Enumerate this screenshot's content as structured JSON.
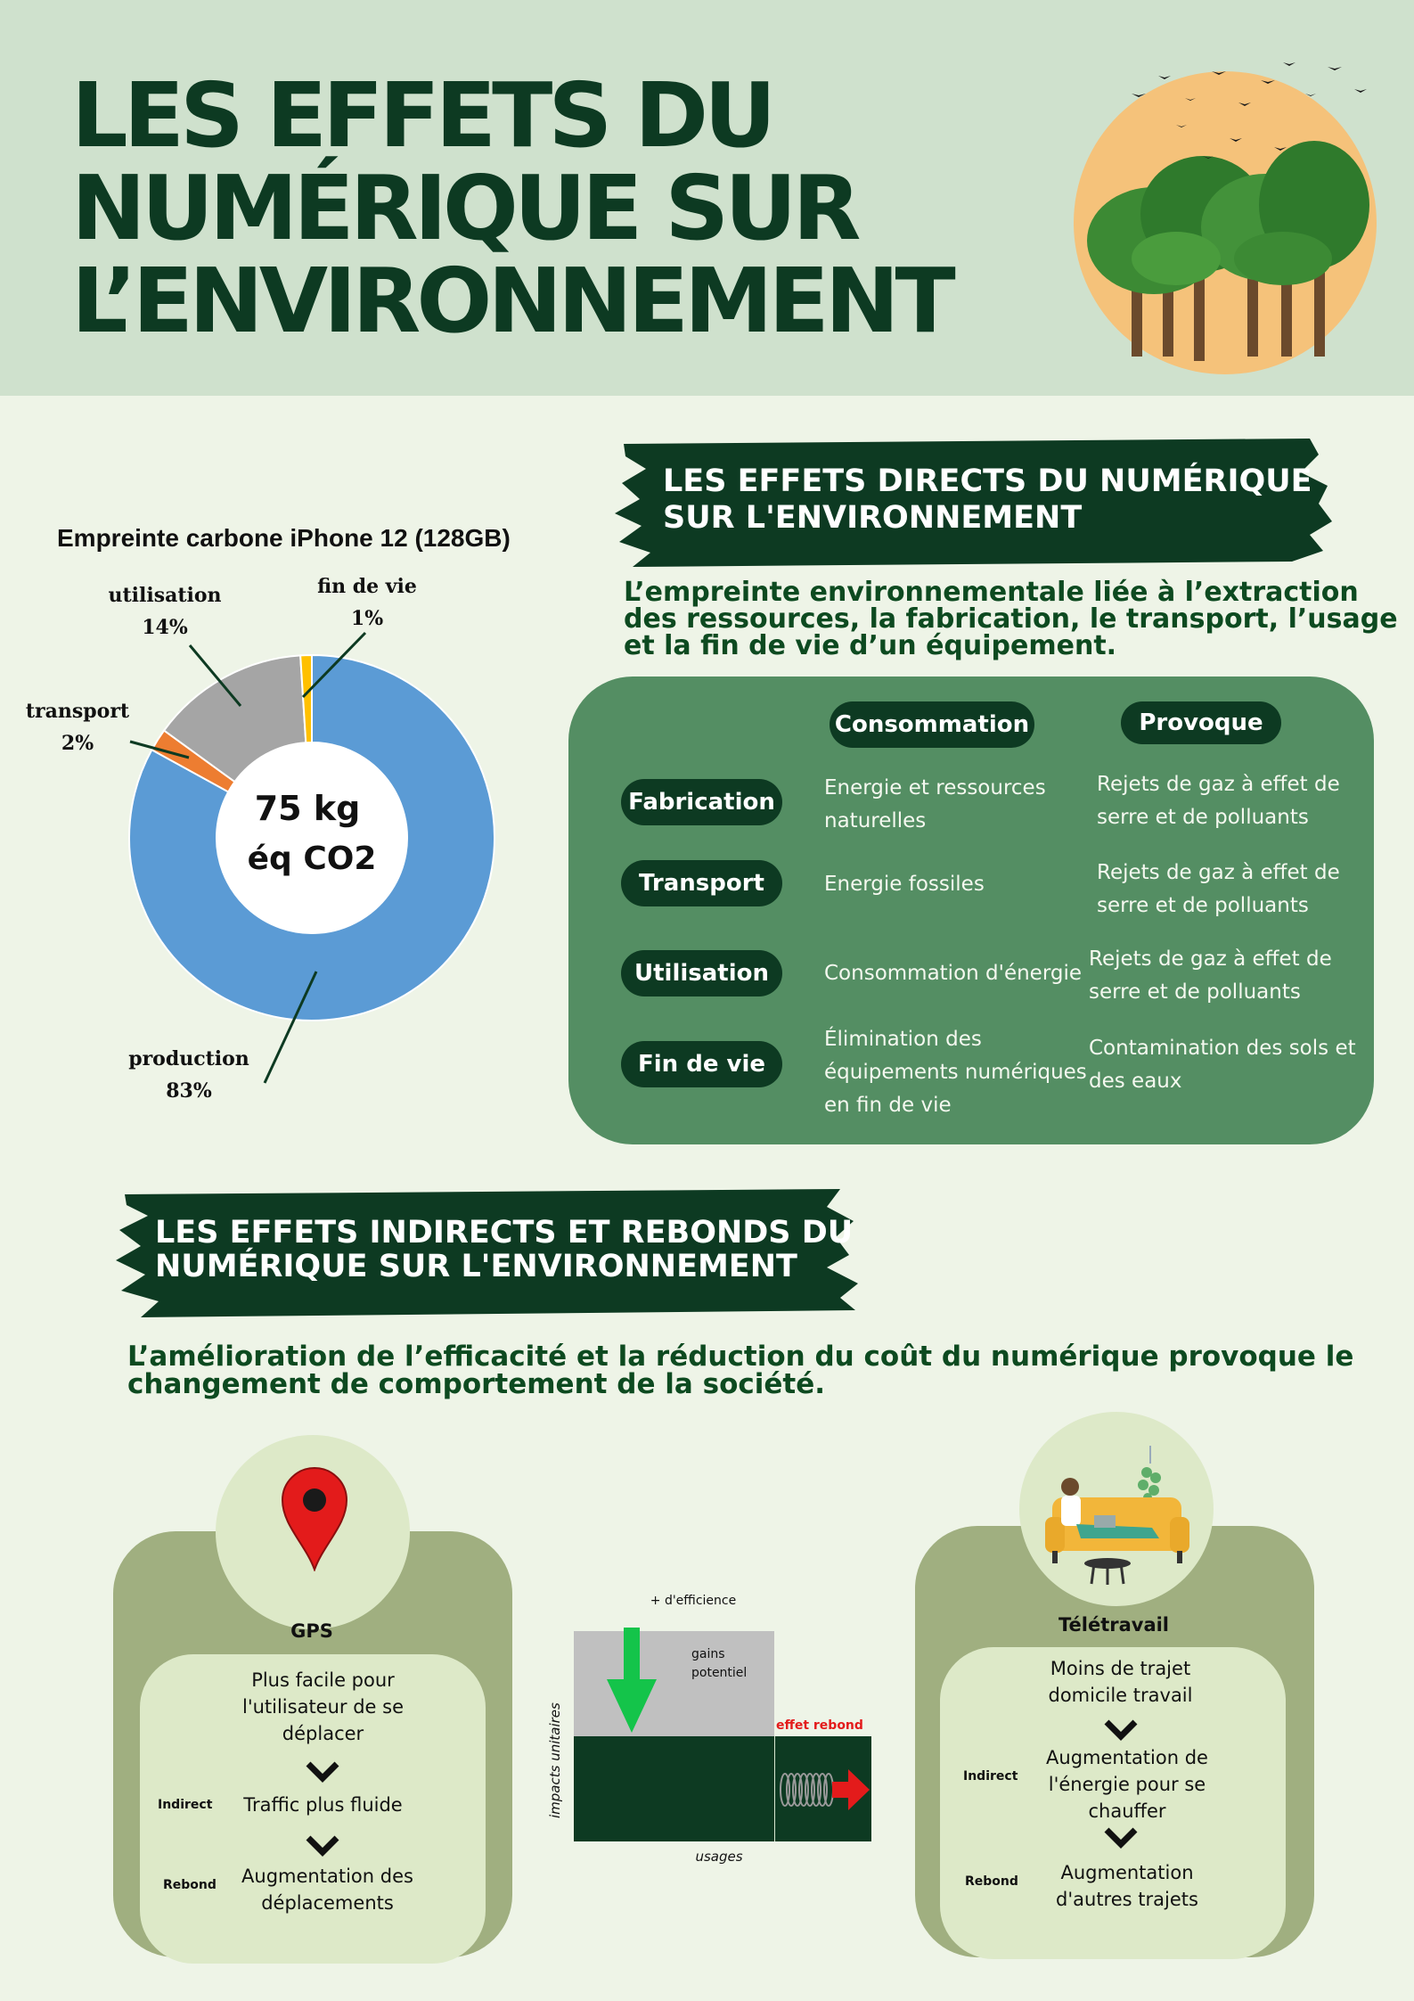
{
  "header": {
    "title_lines": [
      "LES EFFETS DU",
      "NUMÉRIQUE SUR",
      "L’ENVIRONNEMENT"
    ]
  },
  "direct": {
    "banner_lines": [
      "LES EFFETS DIRECTS DU NUMÉRIQUE",
      "SUR L'ENVIRONNEMENT"
    ],
    "intro_lines": [
      "L’empreinte environnementale liée à l’extraction",
      "des ressources, la fabrication, le transport, l’usage",
      "et la fin de vie d’un équipement."
    ],
    "table": {
      "col_headers": [
        "Consommation",
        "Provoque"
      ],
      "rows": [
        {
          "label": "Fabrication",
          "consumption": [
            "Energie et ressources",
            "naturelles"
          ],
          "effect": [
            "Rejets de gaz à effet de",
            "serre et de polluants"
          ]
        },
        {
          "label": "Transport",
          "consumption": [
            "Energie fossiles"
          ],
          "effect": [
            "Rejets de gaz à effet de",
            "serre et de polluants"
          ]
        },
        {
          "label": "Utilisation",
          "consumption": [
            "Consommation d'énergie"
          ],
          "effect": [
            "Rejets de gaz à effet de",
            "serre et de polluants"
          ]
        },
        {
          "label": "Fin de vie",
          "consumption": [
            "Élimination des",
            "équipements numériques",
            "en fin de vie"
          ],
          "effect": [
            "Contamination des sols et",
            "des eaux"
          ]
        }
      ]
    }
  },
  "chart_data": {
    "type": "pie",
    "title": "Empreinte carbone iPhone 12 (128GB)",
    "center_label": [
      "75 kg",
      "éq CO2"
    ],
    "categories": [
      "production",
      "transport",
      "utilisation",
      "fin de vie"
    ],
    "values": [
      83,
      2,
      14,
      1
    ],
    "value_labels": [
      "83%",
      "2%",
      "14%",
      "1%"
    ],
    "colors": [
      "#5b9bd5",
      "#ed7d31",
      "#a5a5a5",
      "#ffc000"
    ]
  },
  "indirect": {
    "banner_lines": [
      "LES EFFETS INDIRECTS ET REBONDS DU",
      "NUMÉRIQUE SUR L'ENVIRONNEMENT"
    ],
    "intro_lines": [
      "L’amélioration de l’efficacité et la réduction du coût du numérique provoque le",
      "changement de comportement de la société."
    ],
    "gps": {
      "title": "GPS",
      "icon": "map-pin-icon",
      "step1": [
        "Plus facile pour",
        "l'utilisateur de se",
        "déplacer"
      ],
      "indirect_label": "Indirect",
      "step2": [
        "Traffic plus fluide"
      ],
      "rebound_label": "Rebond",
      "step3": [
        "Augmentation des",
        "déplacements"
      ]
    },
    "rebound_chart": {
      "top_label": "+ d'efficience",
      "gain_label": [
        "gains",
        "potentiel"
      ],
      "effect_label": "effet rebond",
      "y_label": "impacts unitaires",
      "x_label": "usages"
    },
    "telework": {
      "title": "Télétravail",
      "icon": "person-on-sofa-icon",
      "step1": [
        "Moins de trajet",
        "domicile travail"
      ],
      "indirect_label": "Indirect",
      "step2": [
        "Augmentation de",
        "l'énergie pour se",
        "chauffer"
      ],
      "rebound_label": "Rebond",
      "step3": [
        "Augmentation",
        "d'autres trajets"
      ]
    }
  }
}
